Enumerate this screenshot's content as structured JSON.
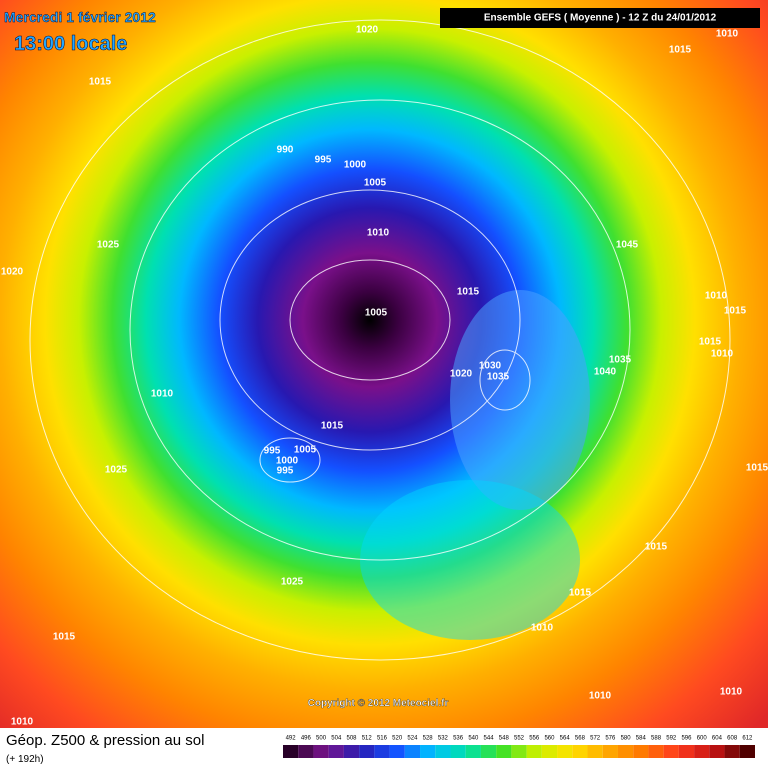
{
  "header": {
    "date": "Mercredi 1 février 2012",
    "time": "13:00 locale",
    "model": "Ensemble GEFS ( Moyenne )  -  12 Z du 24/01/2012"
  },
  "isobar_labels": [
    "1020",
    "1015",
    "1010",
    "1015",
    "990",
    "995",
    "1000",
    "1005",
    "1010",
    "1025",
    "1020",
    "1045",
    "1010",
    "1015",
    "1015",
    "1005",
    "1015",
    "1010",
    "1035",
    "1040",
    "1020",
    "1030",
    "1035",
    "1010",
    "1015",
    "995",
    "1005",
    "1000",
    "995",
    "1025",
    "1015",
    "1015",
    "1025",
    "1015",
    "1015",
    "1010",
    "1010",
    "1010",
    "1010"
  ],
  "copyright": "Copyright © 2012 Meteociel.fr",
  "legend": {
    "title": "Géop. Z500 & pression au sol",
    "subtitle": "(+ 192h)",
    "scale": [
      492,
      496,
      500,
      504,
      508,
      512,
      516,
      520,
      524,
      528,
      532,
      536,
      540,
      544,
      548,
      552,
      556,
      560,
      564,
      568,
      572,
      576,
      580,
      584,
      588,
      592,
      596,
      600,
      604,
      608,
      612
    ]
  }
}
